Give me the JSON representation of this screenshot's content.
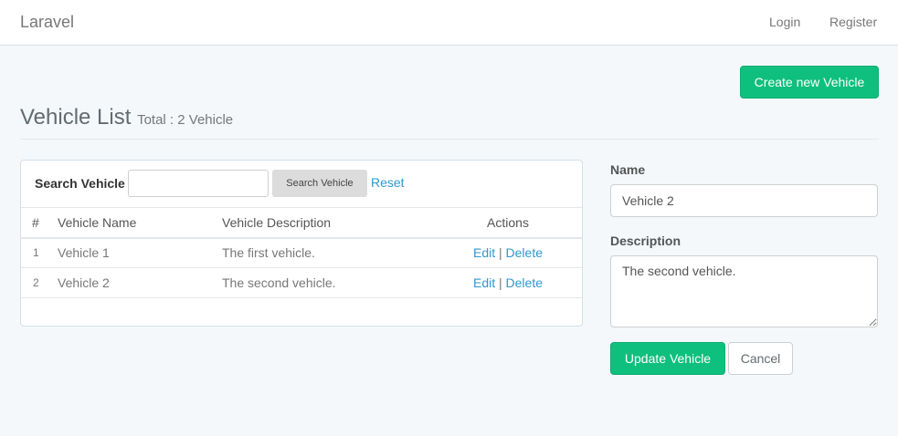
{
  "navbar": {
    "brand": "Laravel",
    "login": "Login",
    "register": "Register"
  },
  "create_button": "Create new Vehicle",
  "header": {
    "title": "Vehicle List",
    "subtitle": "Total : 2 Vehicle"
  },
  "search": {
    "label": "Search Vehicle",
    "value": "",
    "button": "Search Vehicle",
    "reset": "Reset"
  },
  "table": {
    "headers": [
      "#",
      "Vehicle Name",
      "Vehicle Description",
      "Actions"
    ],
    "rows": [
      {
        "num": "1",
        "name": "Vehicle 1",
        "description": "The first vehicle.",
        "edit": "Edit",
        "sep": "|",
        "delete": "Delete"
      },
      {
        "num": "2",
        "name": "Vehicle 2",
        "description": "The second vehicle.",
        "edit": "Edit",
        "sep": "|",
        "delete": "Delete"
      }
    ]
  },
  "form": {
    "name_label": "Name",
    "name_value": "Vehicle 2",
    "description_label": "Description",
    "description_value": "The second vehicle.",
    "update": "Update Vehicle",
    "cancel": "Cancel"
  },
  "colors": {
    "primary": "#0fbf7d",
    "link": "#3097d1"
  }
}
